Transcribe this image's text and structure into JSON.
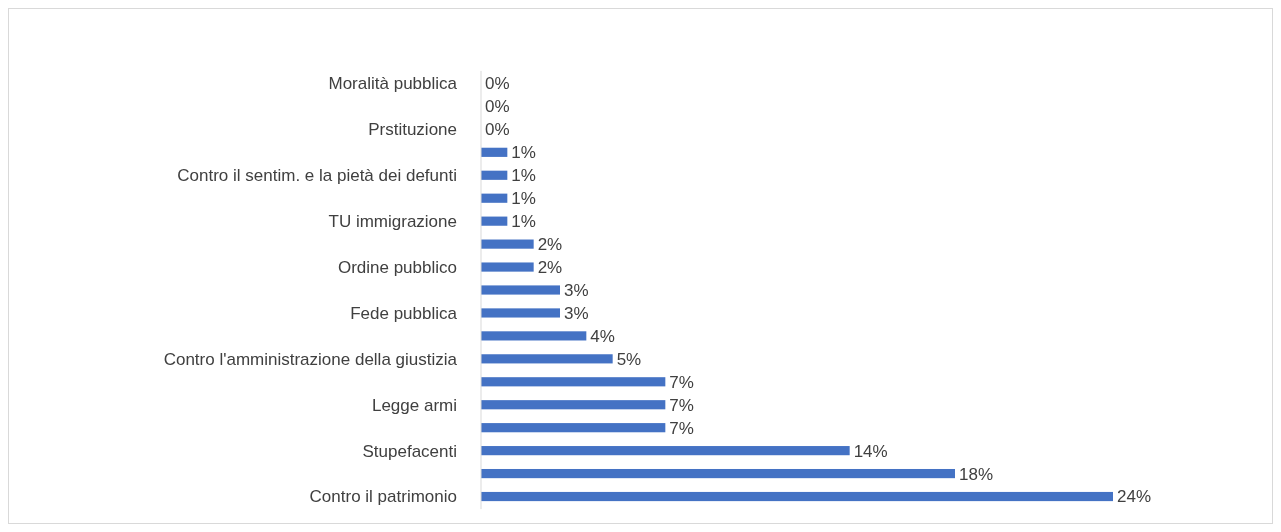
{
  "chart_data": {
    "type": "bar",
    "orientation": "horizontal",
    "color": "#4472c4",
    "categories": [
      "Moralità pubblica",
      null,
      "Prstituzione",
      null,
      "Contro il sentim. e la pietà dei defunti",
      null,
      "TU immigrazione",
      null,
      "Ordine pubblico",
      null,
      "Fede pubblica",
      null,
      "Contro l'amministrazione della giustizia",
      null,
      "Legge armi",
      null,
      "Stupefacenti",
      null,
      "Contro il patrimonio"
    ],
    "values": [
      0,
      0,
      0,
      1,
      1,
      1,
      1,
      2,
      2,
      3,
      3,
      4,
      5,
      7,
      7,
      7,
      14,
      18,
      24
    ],
    "value_labels": [
      "0%",
      "0%",
      "0%",
      "1%",
      "1%",
      "1%",
      "1%",
      "2%",
      "2%",
      "3%",
      "3%",
      "4%",
      "5%",
      "7%",
      "7%",
      "7%",
      "14%",
      "18%",
      "24%"
    ]
  }
}
